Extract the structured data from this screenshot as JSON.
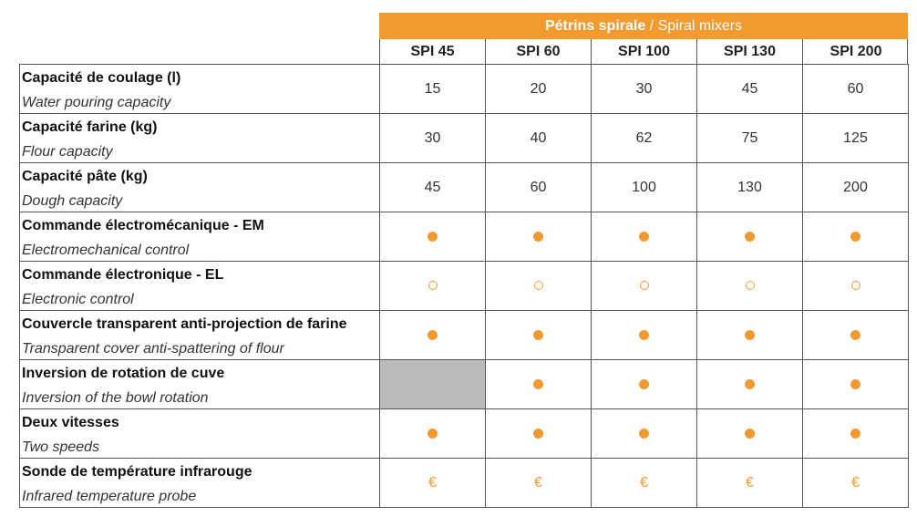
{
  "header": {
    "title_fr": "Pétrins spirale",
    "title_sep": " / ",
    "title_en": "Spiral mixers",
    "accent_color": "#f39a2e"
  },
  "models": [
    "SPI 45",
    "SPI 60",
    "SPI 100",
    "SPI 130",
    "SPI 200"
  ],
  "rows": [
    {
      "fr": "Capacité de coulage (l)",
      "en": "Water pouring capacity",
      "cells": [
        {
          "t": "text",
          "v": "15"
        },
        {
          "t": "text",
          "v": "20"
        },
        {
          "t": "text",
          "v": "30"
        },
        {
          "t": "text",
          "v": "45"
        },
        {
          "t": "text",
          "v": "60"
        }
      ]
    },
    {
      "fr": "Capacité farine (kg)",
      "en": "Flour capacity",
      "cells": [
        {
          "t": "text",
          "v": "30"
        },
        {
          "t": "text",
          "v": "40"
        },
        {
          "t": "text",
          "v": "62"
        },
        {
          "t": "text",
          "v": "75"
        },
        {
          "t": "text",
          "v": "125"
        }
      ]
    },
    {
      "fr": "Capacité pâte (kg)",
      "en": "Dough capacity",
      "cells": [
        {
          "t": "text",
          "v": "45"
        },
        {
          "t": "text",
          "v": "60"
        },
        {
          "t": "text",
          "v": "100"
        },
        {
          "t": "text",
          "v": "130"
        },
        {
          "t": "text",
          "v": "200"
        }
      ]
    },
    {
      "fr": "Commande électromécanique - EM",
      "en": "Electromechanical control",
      "cells": [
        {
          "t": "dot"
        },
        {
          "t": "dot"
        },
        {
          "t": "dot"
        },
        {
          "t": "dot"
        },
        {
          "t": "dot"
        }
      ]
    },
    {
      "fr": "Commande électronique - EL",
      "en": "Electronic control",
      "cells": [
        {
          "t": "ring"
        },
        {
          "t": "ring"
        },
        {
          "t": "ring"
        },
        {
          "t": "ring"
        },
        {
          "t": "ring"
        }
      ]
    },
    {
      "fr": "Couvercle transparent anti-projection de farine",
      "en": "Transparent cover anti-spattering of flour",
      "cells": [
        {
          "t": "dot"
        },
        {
          "t": "dot"
        },
        {
          "t": "dot"
        },
        {
          "t": "dot"
        },
        {
          "t": "dot"
        }
      ]
    },
    {
      "fr": "Inversion de rotation de cuve",
      "en": "Inversion of the bowl rotation",
      "cells": [
        {
          "t": "na"
        },
        {
          "t": "dot"
        },
        {
          "t": "dot"
        },
        {
          "t": "dot"
        },
        {
          "t": "dot"
        }
      ]
    },
    {
      "fr": "Deux vitesses",
      "en": "Two speeds",
      "cells": [
        {
          "t": "dot"
        },
        {
          "t": "dot"
        },
        {
          "t": "dot"
        },
        {
          "t": "dot"
        },
        {
          "t": "dot"
        }
      ]
    },
    {
      "fr": "Sonde de température infrarouge",
      "en": "Infrared temperature probe",
      "cells": [
        {
          "t": "euro",
          "v": "€"
        },
        {
          "t": "euro",
          "v": "€"
        },
        {
          "t": "euro",
          "v": "€"
        },
        {
          "t": "euro",
          "v": "€"
        },
        {
          "t": "euro",
          "v": "€"
        }
      ]
    }
  ],
  "legend_icons": {
    "dot": "filled-circle-icon (standard)",
    "ring": "open-circle-icon (option)",
    "euro": "euro-icon (paid option)",
    "na": "not-available-cell"
  }
}
